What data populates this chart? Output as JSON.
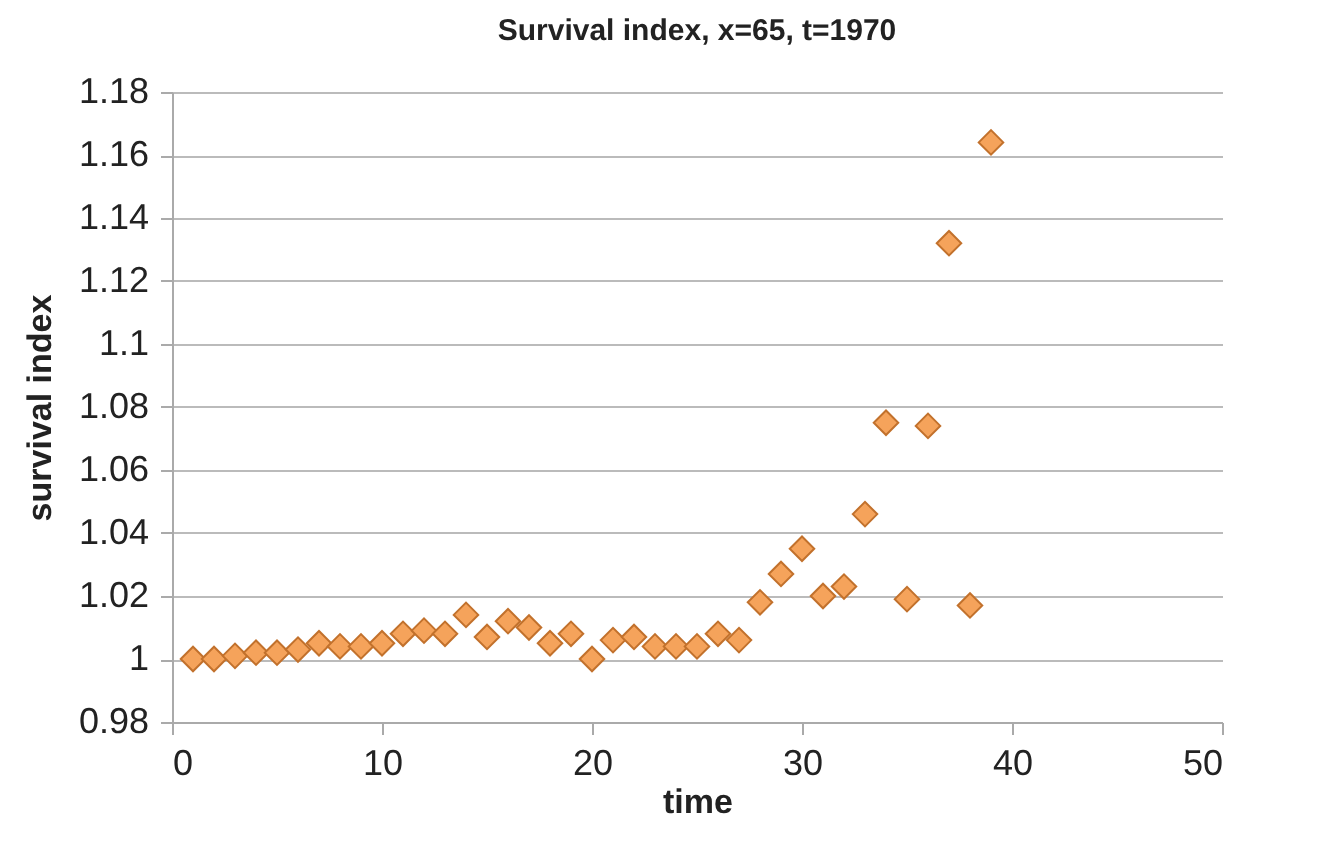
{
  "chart_data": {
    "type": "scatter",
    "title": "Survival index, x=65, t=1970",
    "xlabel": "time",
    "ylabel": "survival index",
    "x": [
      1,
      2,
      3,
      4,
      5,
      6,
      7,
      8,
      9,
      10,
      11,
      12,
      13,
      14,
      15,
      16,
      17,
      18,
      19,
      20,
      21,
      22,
      23,
      24,
      25,
      26,
      27,
      28,
      29,
      30,
      31,
      32,
      33,
      34,
      35,
      36,
      37,
      38,
      39
    ],
    "series": [
      {
        "color": "#f5a35b",
        "values": [
          1.0,
          1.0,
          1.001,
          1.002,
          1.002,
          1.003,
          1.005,
          1.004,
          1.004,
          1.005,
          1.008,
          1.009,
          1.008,
          1.014,
          1.007,
          1.012,
          1.01,
          1.005,
          1.008,
          1.0,
          1.006,
          1.007,
          1.004,
          1.004,
          1.004,
          1.008,
          1.006,
          1.018,
          1.027,
          1.035,
          1.02,
          1.023,
          1.046,
          1.075,
          1.019,
          1.074,
          1.132,
          1.017,
          1.164
        ]
      }
    ],
    "xlim": [
      0,
      50
    ],
    "xticks": [
      0,
      10,
      20,
      30,
      40,
      50
    ],
    "ylim": [
      0.98,
      1.18
    ],
    "yticks": [
      0.98,
      1,
      1.02,
      1.04,
      1.06,
      1.08,
      1.1,
      1.12,
      1.14,
      1.16,
      1.18
    ],
    "grid": "y",
    "marker": "diamond"
  }
}
